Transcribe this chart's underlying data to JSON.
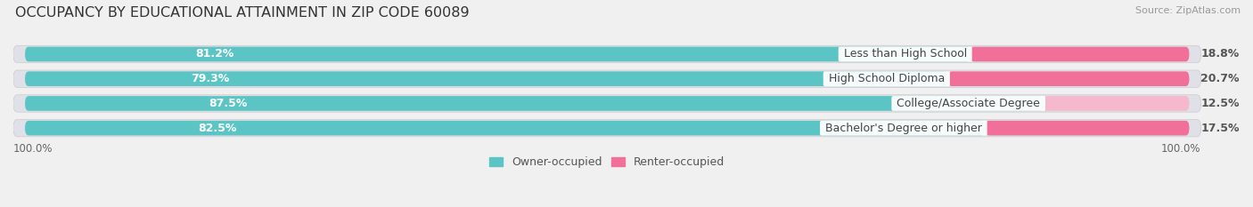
{
  "title": "OCCUPANCY BY EDUCATIONAL ATTAINMENT IN ZIP CODE 60089",
  "source": "Source: ZipAtlas.com",
  "categories": [
    "Less than High School",
    "High School Diploma",
    "College/Associate Degree",
    "Bachelor's Degree or higher"
  ],
  "owner_pct": [
    81.2,
    79.3,
    87.5,
    82.5
  ],
  "renter_pct": [
    18.8,
    20.7,
    12.5,
    17.5
  ],
  "owner_color": "#5bc4c4",
  "renter_color_strong": "#f0709a",
  "renter_color_light": "#f5a8c0",
  "cat_label_color": "#444444",
  "background_color": "#f0f0f0",
  "bar_background": "#e0e0e8",
  "title_fontsize": 11.5,
  "source_fontsize": 8,
  "bar_label_fontsize": 9,
  "cat_label_fontsize": 9,
  "axis_label_fontsize": 8.5,
  "legend_fontsize": 9,
  "figsize": [
    14.06,
    2.33
  ],
  "dpi": 100,
  "x_left_label": "100.0%",
  "x_right_label": "100.0%",
  "renter_colors": [
    "#f0709a",
    "#f0709a",
    "#f5b8cc",
    "#f0709a"
  ]
}
